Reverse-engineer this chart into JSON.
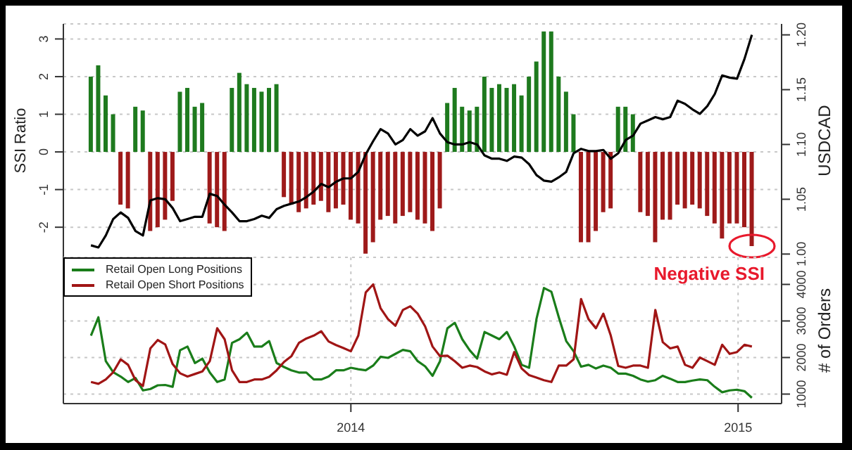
{
  "chart_data": [
    {
      "type": "bar",
      "ylabel": "SSI Ratio",
      "y2label": "USDCAD",
      "ylim": [
        -2.8,
        3.4
      ],
      "yticks": [
        -2,
        -1,
        0,
        1,
        2,
        3
      ],
      "y2lim": [
        0.997,
        1.21
      ],
      "y2ticks": [
        {
          "value": 1.0,
          "label": "1.00"
        },
        {
          "value": 1.05,
          "label": "1.05"
        },
        {
          "value": 1.1,
          "label": "1.10"
        },
        {
          "value": 1.15,
          "label": "1.15"
        },
        {
          "value": 1.2,
          "label": "1.20"
        }
      ],
      "xlim": [
        "2013-04-05",
        "2015-02-11"
      ],
      "xticks": [
        {
          "value": "2014-01-01",
          "label": null
        },
        {
          "value": "2015-01-01",
          "label": null
        }
      ],
      "tick_labels": "y",
      "grid": true,
      "x": [
        "2013-05-01",
        "2013-05-08",
        "2013-05-15",
        "2013-05-22",
        "2013-05-29",
        "2013-06-05",
        "2013-06-12",
        "2013-06-19",
        "2013-06-26",
        "2013-07-03",
        "2013-07-10",
        "2013-07-17",
        "2013-07-24",
        "2013-07-31",
        "2013-08-07",
        "2013-08-14",
        "2013-08-21",
        "2013-08-28",
        "2013-09-04",
        "2013-09-11",
        "2013-09-18",
        "2013-09-25",
        "2013-10-02",
        "2013-10-09",
        "2013-10-16",
        "2013-10-23",
        "2013-10-30",
        "2013-11-06",
        "2013-11-13",
        "2013-11-20",
        "2013-11-27",
        "2013-12-04",
        "2013-12-11",
        "2013-12-18",
        "2013-12-25",
        "2014-01-01",
        "2014-01-08",
        "2014-01-15",
        "2014-01-22",
        "2014-01-29",
        "2014-02-05",
        "2014-02-12",
        "2014-02-19",
        "2014-02-26",
        "2014-03-05",
        "2014-03-12",
        "2014-03-19",
        "2014-03-26",
        "2014-04-02",
        "2014-04-09",
        "2014-04-16",
        "2014-04-23",
        "2014-04-30",
        "2014-05-07",
        "2014-05-14",
        "2014-05-21",
        "2014-05-28",
        "2014-06-04",
        "2014-06-11",
        "2014-06-18",
        "2014-06-25",
        "2014-07-02",
        "2014-07-09",
        "2014-07-16",
        "2014-07-23",
        "2014-07-30",
        "2014-08-06",
        "2014-08-13",
        "2014-08-20",
        "2014-08-27",
        "2014-09-03",
        "2014-09-10",
        "2014-09-17",
        "2014-09-24",
        "2014-10-01",
        "2014-10-08",
        "2014-10-15",
        "2014-10-22",
        "2014-10-29",
        "2014-11-05",
        "2014-11-12",
        "2014-11-19",
        "2014-11-26",
        "2014-12-03",
        "2014-12-10",
        "2014-12-17",
        "2014-12-24",
        "2014-12-31",
        "2015-01-07",
        "2015-01-14"
      ],
      "series": [
        {
          "values": [
            2.0,
            2.3,
            1.5,
            1.0,
            -1.4,
            -1.5,
            1.2,
            1.1,
            -2.1,
            -2.0,
            -1.8,
            -1.3,
            1.6,
            1.7,
            1.2,
            1.3,
            -1.9,
            -2.0,
            -2.1,
            1.7,
            2.1,
            1.8,
            1.7,
            1.6,
            1.7,
            1.8,
            -1.2,
            -1.4,
            -1.6,
            -1.5,
            -1.4,
            -1.3,
            -1.6,
            -1.5,
            -1.4,
            -1.8,
            -1.9,
            -2.7,
            -2.4,
            -1.8,
            -1.7,
            -1.9,
            -1.7,
            -1.6,
            -1.8,
            -1.9,
            -2.1,
            -1.5,
            1.3,
            1.7,
            1.2,
            1.1,
            1.2,
            2.0,
            1.7,
            1.8,
            1.7,
            1.8,
            1.5,
            2.0,
            2.4,
            3.2,
            3.2,
            2.0,
            1.6,
            1.0,
            -2.4,
            -2.4,
            -2.1,
            -1.6,
            -1.5,
            1.2,
            1.2,
            1.0,
            -1.6,
            -1.7,
            -2.4,
            -1.8,
            -1.8,
            -1.4,
            -1.5,
            -1.4,
            -1.5,
            -1.7,
            -1.9,
            -2.3,
            -1.9,
            -1.9,
            -2.0,
            -2.5
          ],
          "colors": [
            "#1e7a1e",
            "#1e7a1e",
            "#1e7a1e",
            "#1e7a1e",
            "#9e1a1a",
            "#9e1a1a",
            "#1e7a1e",
            "#1e7a1e",
            "#9e1a1a",
            "#9e1a1a",
            "#9e1a1a",
            "#9e1a1a",
            "#1e7a1e",
            "#1e7a1e",
            "#1e7a1e",
            "#1e7a1e",
            "#9e1a1a",
            "#9e1a1a",
            "#9e1a1a",
            "#1e7a1e",
            "#1e7a1e",
            "#1e7a1e",
            "#1e7a1e",
            "#1e7a1e",
            "#1e7a1e",
            "#1e7a1e",
            "#9e1a1a",
            "#9e1a1a",
            "#9e1a1a",
            "#9e1a1a",
            "#9e1a1a",
            "#9e1a1a",
            "#9e1a1a",
            "#9e1a1a",
            "#9e1a1a",
            "#9e1a1a",
            "#9e1a1a",
            "#9e1a1a",
            "#9e1a1a",
            "#9e1a1a",
            "#9e1a1a",
            "#9e1a1a",
            "#9e1a1a",
            "#9e1a1a",
            "#9e1a1a",
            "#9e1a1a",
            "#9e1a1a",
            "#9e1a1a",
            "#1e7a1e",
            "#1e7a1e",
            "#1e7a1e",
            "#1e7a1e",
            "#1e7a1e",
            "#1e7a1e",
            "#1e7a1e",
            "#1e7a1e",
            "#1e7a1e",
            "#1e7a1e",
            "#1e7a1e",
            "#1e7a1e",
            "#1e7a1e",
            "#1e7a1e",
            "#1e7a1e",
            "#1e7a1e",
            "#1e7a1e",
            "#1e7a1e",
            "#9e1a1a",
            "#9e1a1a",
            "#9e1a1a",
            "#9e1a1a",
            "#9e1a1a",
            "#1e7a1e",
            "#1e7a1e",
            "#1e7a1e",
            "#9e1a1a",
            "#9e1a1a",
            "#9e1a1a",
            "#9e1a1a",
            "#9e1a1a",
            "#9e1a1a",
            "#9e1a1a",
            "#9e1a1a",
            "#9e1a1a",
            "#9e1a1a",
            "#9e1a1a",
            "#9e1a1a",
            "#9e1a1a",
            "#9e1a1a",
            "#9e1a1a",
            "#9e1a1a"
          ]
        },
        {
          "type": "line",
          "axis": "y2",
          "color": "#000000",
          "values": [
            1.008,
            1.006,
            1.017,
            1.032,
            1.038,
            1.033,
            1.021,
            1.017,
            1.049,
            1.051,
            1.05,
            1.042,
            1.03,
            1.032,
            1.034,
            1.034,
            1.055,
            1.053,
            1.045,
            1.038,
            1.03,
            1.03,
            1.032,
            1.035,
            1.033,
            1.041,
            1.044,
            1.046,
            1.048,
            1.052,
            1.057,
            1.064,
            1.061,
            1.066,
            1.069,
            1.069,
            1.075,
            1.091,
            1.103,
            1.114,
            1.11,
            1.1,
            1.104,
            1.114,
            1.108,
            1.112,
            1.124,
            1.11,
            1.102,
            1.1,
            1.1,
            1.102,
            1.1,
            1.09,
            1.087,
            1.087,
            1.085,
            1.089,
            1.088,
            1.082,
            1.072,
            1.067,
            1.066,
            1.07,
            1.075,
            1.092,
            1.096,
            1.094,
            1.094,
            1.095,
            1.087,
            1.092,
            1.104,
            1.108,
            1.119,
            1.122,
            1.125,
            1.123,
            1.125,
            1.14,
            1.137,
            1.132,
            1.128,
            1.135,
            1.146,
            1.163,
            1.161,
            1.16,
            1.178,
            1.2
          ]
        }
      ]
    },
    {
      "type": "line",
      "y2label": "# of Orders",
      "y2lim": [
        740,
        4740
      ],
      "y2ticks": [
        1000,
        2000,
        3000,
        4000
      ],
      "xlim": [
        "2013-04-05",
        "2015-02-11"
      ],
      "xticks": [
        {
          "value": "2014-01-01",
          "label": "2014"
        },
        {
          "value": "2015-01-01",
          "label": "2015"
        }
      ],
      "grid": true,
      "legend": "top left",
      "marker": "none",
      "line_style": "solid",
      "annotations": [
        "Negative SSI"
      ],
      "x": [
        "2013-05-01",
        "2013-05-08",
        "2013-05-15",
        "2013-05-22",
        "2013-05-29",
        "2013-06-05",
        "2013-06-12",
        "2013-06-19",
        "2013-06-26",
        "2013-07-03",
        "2013-07-10",
        "2013-07-17",
        "2013-07-24",
        "2013-07-31",
        "2013-08-07",
        "2013-08-14",
        "2013-08-21",
        "2013-08-28",
        "2013-09-04",
        "2013-09-11",
        "2013-09-18",
        "2013-09-25",
        "2013-10-02",
        "2013-10-09",
        "2013-10-16",
        "2013-10-23",
        "2013-10-30",
        "2013-11-06",
        "2013-11-13",
        "2013-11-20",
        "2013-11-27",
        "2013-12-04",
        "2013-12-11",
        "2013-12-18",
        "2013-12-25",
        "2014-01-01",
        "2014-01-08",
        "2014-01-15",
        "2014-01-22",
        "2014-01-29",
        "2014-02-05",
        "2014-02-12",
        "2014-02-19",
        "2014-02-26",
        "2014-03-05",
        "2014-03-12",
        "2014-03-19",
        "2014-03-26",
        "2014-04-02",
        "2014-04-09",
        "2014-04-16",
        "2014-04-23",
        "2014-04-30",
        "2014-05-07",
        "2014-05-14",
        "2014-05-21",
        "2014-05-28",
        "2014-06-04",
        "2014-06-11",
        "2014-06-18",
        "2014-06-25",
        "2014-07-02",
        "2014-07-09",
        "2014-07-16",
        "2014-07-23",
        "2014-07-30",
        "2014-08-06",
        "2014-08-13",
        "2014-08-20",
        "2014-08-27",
        "2014-09-03",
        "2014-09-10",
        "2014-09-17",
        "2014-09-24",
        "2014-10-01",
        "2014-10-08",
        "2014-10-15",
        "2014-10-22",
        "2014-10-29",
        "2014-11-05",
        "2014-11-12",
        "2014-11-19",
        "2014-11-26",
        "2014-12-03",
        "2014-12-10",
        "2014-12-17",
        "2014-12-24",
        "2014-12-31",
        "2015-01-07",
        "2015-01-14"
      ],
      "series": [
        {
          "name": "Retail Open Long Positions",
          "axis": "y2",
          "color": "#1a7d1a",
          "values": [
            2600,
            3100,
            1900,
            1600,
            1480,
            1330,
            1440,
            1100,
            1140,
            1240,
            1250,
            1200,
            2200,
            2300,
            1850,
            1970,
            1590,
            1330,
            1400,
            2400,
            2500,
            2680,
            2300,
            2300,
            2450,
            1850,
            1740,
            1650,
            1590,
            1590,
            1400,
            1400,
            1480,
            1650,
            1650,
            1720,
            1680,
            1650,
            1780,
            2020,
            1990,
            2100,
            2210,
            2170,
            1900,
            1760,
            1500,
            1900,
            2800,
            2950,
            2500,
            2200,
            1970,
            2700,
            2600,
            2500,
            2700,
            2300,
            1800,
            1720,
            3060,
            3900,
            3800,
            3100,
            2450,
            2170,
            1750,
            1800,
            1700,
            1780,
            1720,
            1560,
            1560,
            1500,
            1400,
            1340,
            1380,
            1500,
            1420,
            1330,
            1330,
            1370,
            1400,
            1380,
            1200,
            1050,
            1100,
            1120,
            1080,
            900
          ]
        },
        {
          "name": "Retail Open Short Positions",
          "axis": "y2",
          "color": "#a01515",
          "values": [
            1330,
            1280,
            1400,
            1600,
            1950,
            1800,
            1380,
            1220,
            2250,
            2480,
            2360,
            1820,
            1570,
            1480,
            1550,
            1620,
            1900,
            2800,
            2500,
            1650,
            1330,
            1330,
            1400,
            1400,
            1470,
            1650,
            1880,
            2040,
            2400,
            2520,
            2600,
            2720,
            2440,
            2340,
            2260,
            2170,
            2600,
            3780,
            4000,
            3350,
            3050,
            2870,
            3300,
            3400,
            3200,
            2850,
            2300,
            2040,
            2050,
            1900,
            1720,
            1780,
            1740,
            1620,
            1540,
            1590,
            1530,
            2150,
            1700,
            1520,
            1450,
            1380,
            1330,
            1780,
            1780,
            1950,
            3600,
            3050,
            2800,
            3200,
            2600,
            1770,
            1720,
            1780,
            1780,
            1720,
            3300,
            2420,
            2250,
            2300,
            1800,
            1720,
            2000,
            1900,
            1800,
            2350,
            2100,
            2150,
            2350,
            2300
          ]
        }
      ]
    }
  ]
}
